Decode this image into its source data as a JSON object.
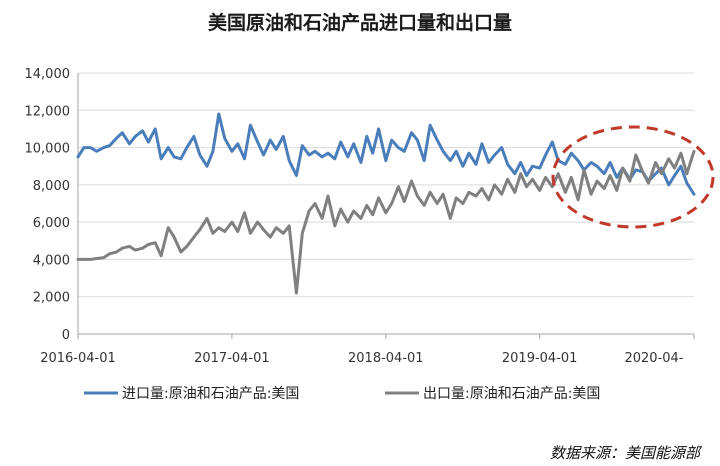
{
  "chart_data": {
    "type": "line",
    "title": "美国原油和石油产品进口量和出口量",
    "source": "数据来源：美国能源部",
    "ylim": [
      0,
      14000
    ],
    "yticks": [
      {
        "value": 0,
        "label": "0"
      },
      {
        "value": 2000,
        "label": "2,000"
      },
      {
        "value": 4000,
        "label": "4,000"
      },
      {
        "value": 6000,
        "label": "6,000"
      },
      {
        "value": 8000,
        "label": "8,000"
      },
      {
        "value": 10000,
        "label": "10,000"
      },
      {
        "value": 12000,
        "label": "12,000"
      },
      {
        "value": 14000,
        "label": "14,000"
      }
    ],
    "xlim": [
      "2016-04-01",
      "2020-04-01"
    ],
    "xticks": [
      {
        "value": "2016-04-01",
        "label": "2016-04-01"
      },
      {
        "value": "2017-04-01",
        "label": "2017-04-01"
      },
      {
        "value": "2018-04-01",
        "label": "2018-04-01"
      },
      {
        "value": "2019-04-01",
        "label": "2019-04-01"
      },
      {
        "value": "2020-04-01",
        "label": "2020-04-"
      }
    ],
    "grid": "horizontal",
    "legend": "bottom",
    "annotation": "red dashed ellipse highlighting 2019-05 to 2020-04, where exports approach imports",
    "series": [
      {
        "name": "进口量:原油和石油产品:美国",
        "color": "#4a7ebb",
        "points": [
          [
            "2016-04-01",
            9500
          ],
          [
            "2016-04-15",
            10000
          ],
          [
            "2016-05-01",
            10000
          ],
          [
            "2016-05-15",
            9800
          ],
          [
            "2016-06-01",
            10000
          ],
          [
            "2016-06-15",
            10100
          ],
          [
            "2016-07-01",
            10500
          ],
          [
            "2016-07-15",
            10800
          ],
          [
            "2016-08-01",
            10200
          ],
          [
            "2016-08-15",
            10600
          ],
          [
            "2016-09-01",
            10900
          ],
          [
            "2016-09-15",
            10300
          ],
          [
            "2016-10-01",
            11000
          ],
          [
            "2016-10-15",
            9400
          ],
          [
            "2016-11-01",
            10000
          ],
          [
            "2016-11-15",
            9500
          ],
          [
            "2016-12-01",
            9400
          ],
          [
            "2016-12-15",
            10000
          ],
          [
            "2017-01-01",
            10600
          ],
          [
            "2017-01-15",
            9600
          ],
          [
            "2017-02-01",
            9000
          ],
          [
            "2017-02-15",
            9800
          ],
          [
            "2017-03-01",
            11800
          ],
          [
            "2017-03-15",
            10500
          ],
          [
            "2017-04-01",
            9800
          ],
          [
            "2017-04-15",
            10200
          ],
          [
            "2017-05-01",
            9400
          ],
          [
            "2017-05-15",
            11200
          ],
          [
            "2017-06-01",
            10300
          ],
          [
            "2017-06-15",
            9600
          ],
          [
            "2017-07-01",
            10400
          ],
          [
            "2017-07-15",
            9900
          ],
          [
            "2017-08-01",
            10600
          ],
          [
            "2017-08-15",
            9300
          ],
          [
            "2017-09-01",
            8500
          ],
          [
            "2017-09-15",
            10100
          ],
          [
            "2017-10-01",
            9600
          ],
          [
            "2017-10-15",
            9800
          ],
          [
            "2017-11-01",
            9500
          ],
          [
            "2017-11-15",
            9700
          ],
          [
            "2017-12-01",
            9400
          ],
          [
            "2017-12-15",
            10300
          ],
          [
            "2018-01-01",
            9500
          ],
          [
            "2018-01-15",
            10200
          ],
          [
            "2018-02-01",
            9200
          ],
          [
            "2018-02-15",
            10600
          ],
          [
            "2018-03-01",
            9700
          ],
          [
            "2018-03-15",
            11000
          ],
          [
            "2018-04-01",
            9300
          ],
          [
            "2018-04-15",
            10400
          ],
          [
            "2018-05-01",
            10000
          ],
          [
            "2018-05-15",
            9800
          ],
          [
            "2018-06-01",
            10800
          ],
          [
            "2018-06-15",
            10400
          ],
          [
            "2018-07-01",
            9300
          ],
          [
            "2018-07-15",
            11200
          ],
          [
            "2018-08-01",
            10400
          ],
          [
            "2018-08-15",
            9800
          ],
          [
            "2018-09-01",
            9300
          ],
          [
            "2018-09-15",
            9800
          ],
          [
            "2018-10-01",
            9000
          ],
          [
            "2018-10-15",
            9700
          ],
          [
            "2018-11-01",
            9100
          ],
          [
            "2018-11-15",
            10200
          ],
          [
            "2018-12-01",
            9200
          ],
          [
            "2018-12-15",
            9600
          ],
          [
            "2019-01-01",
            10000
          ],
          [
            "2019-01-15",
            9100
          ],
          [
            "2019-02-01",
            8600
          ],
          [
            "2019-02-15",
            9200
          ],
          [
            "2019-03-01",
            8500
          ],
          [
            "2019-03-15",
            9000
          ],
          [
            "2019-04-01",
            8900
          ],
          [
            "2019-04-15",
            9600
          ],
          [
            "2019-05-01",
            10300
          ],
          [
            "2019-05-15",
            9300
          ],
          [
            "2019-06-01",
            9100
          ],
          [
            "2019-06-15",
            9700
          ],
          [
            "2019-07-01",
            9300
          ],
          [
            "2019-07-15",
            8800
          ],
          [
            "2019-08-01",
            9200
          ],
          [
            "2019-08-15",
            9000
          ],
          [
            "2019-09-01",
            8600
          ],
          [
            "2019-09-15",
            9200
          ],
          [
            "2019-10-01",
            8400
          ],
          [
            "2019-10-15",
            8900
          ],
          [
            "2019-11-01",
            8300
          ],
          [
            "2019-11-15",
            8800
          ],
          [
            "2019-12-01",
            8700
          ],
          [
            "2019-12-15",
            8200
          ],
          [
            "2020-01-01",
            8600
          ],
          [
            "2020-01-15",
            8900
          ],
          [
            "2020-02-01",
            8000
          ],
          [
            "2020-02-15",
            8500
          ],
          [
            "2020-03-01",
            9000
          ],
          [
            "2020-03-15",
            8100
          ],
          [
            "2020-04-01",
            7500
          ]
        ]
      },
      {
        "name": "出口量:原油和石油产品:美国",
        "color": "#808080",
        "points": [
          [
            "2016-04-01",
            4000
          ],
          [
            "2016-05-01",
            4000
          ],
          [
            "2016-06-01",
            4100
          ],
          [
            "2016-06-15",
            4300
          ],
          [
            "2016-07-01",
            4400
          ],
          [
            "2016-07-15",
            4600
          ],
          [
            "2016-08-01",
            4700
          ],
          [
            "2016-08-15",
            4500
          ],
          [
            "2016-09-01",
            4600
          ],
          [
            "2016-09-15",
            4800
          ],
          [
            "2016-10-01",
            4900
          ],
          [
            "2016-10-15",
            4200
          ],
          [
            "2016-11-01",
            5700
          ],
          [
            "2016-11-15",
            5200
          ],
          [
            "2016-12-01",
            4400
          ],
          [
            "2016-12-15",
            4700
          ],
          [
            "2017-01-01",
            5200
          ],
          [
            "2017-01-15",
            5600
          ],
          [
            "2017-02-01",
            6200
          ],
          [
            "2017-02-15",
            5400
          ],
          [
            "2017-03-01",
            5700
          ],
          [
            "2017-03-15",
            5500
          ],
          [
            "2017-04-01",
            6000
          ],
          [
            "2017-04-15",
            5500
          ],
          [
            "2017-05-01",
            6500
          ],
          [
            "2017-05-15",
            5400
          ],
          [
            "2017-06-01",
            6000
          ],
          [
            "2017-06-15",
            5600
          ],
          [
            "2017-07-01",
            5200
          ],
          [
            "2017-07-15",
            5700
          ],
          [
            "2017-08-01",
            5400
          ],
          [
            "2017-08-15",
            5800
          ],
          [
            "2017-09-01",
            2200
          ],
          [
            "2017-09-15",
            5400
          ],
          [
            "2017-10-01",
            6600
          ],
          [
            "2017-10-15",
            7000
          ],
          [
            "2017-11-01",
            6200
          ],
          [
            "2017-11-15",
            7400
          ],
          [
            "2017-12-01",
            5800
          ],
          [
            "2017-12-15",
            6700
          ],
          [
            "2018-01-01",
            6000
          ],
          [
            "2018-01-15",
            6600
          ],
          [
            "2018-02-01",
            6200
          ],
          [
            "2018-02-15",
            6900
          ],
          [
            "2018-03-01",
            6400
          ],
          [
            "2018-03-15",
            7300
          ],
          [
            "2018-04-01",
            6500
          ],
          [
            "2018-04-15",
            7000
          ],
          [
            "2018-05-01",
            7900
          ],
          [
            "2018-05-15",
            7100
          ],
          [
            "2018-06-01",
            8200
          ],
          [
            "2018-06-15",
            7400
          ],
          [
            "2018-07-01",
            6900
          ],
          [
            "2018-07-15",
            7600
          ],
          [
            "2018-08-01",
            7000
          ],
          [
            "2018-08-15",
            7500
          ],
          [
            "2018-09-01",
            6200
          ],
          [
            "2018-09-15",
            7300
          ],
          [
            "2018-10-01",
            7000
          ],
          [
            "2018-10-15",
            7600
          ],
          [
            "2018-11-01",
            7400
          ],
          [
            "2018-11-15",
            7800
          ],
          [
            "2018-12-01",
            7200
          ],
          [
            "2018-12-15",
            8000
          ],
          [
            "2019-01-01",
            7500
          ],
          [
            "2019-01-15",
            8300
          ],
          [
            "2019-02-01",
            7600
          ],
          [
            "2019-02-15",
            8600
          ],
          [
            "2019-03-01",
            7900
          ],
          [
            "2019-03-15",
            8300
          ],
          [
            "2019-04-01",
            7700
          ],
          [
            "2019-04-15",
            8400
          ],
          [
            "2019-05-01",
            7900
          ],
          [
            "2019-05-15",
            8600
          ],
          [
            "2019-06-01",
            7600
          ],
          [
            "2019-06-15",
            8400
          ],
          [
            "2019-07-01",
            7200
          ],
          [
            "2019-07-15",
            8800
          ],
          [
            "2019-08-01",
            7500
          ],
          [
            "2019-08-15",
            8200
          ],
          [
            "2019-09-01",
            7800
          ],
          [
            "2019-09-15",
            8500
          ],
          [
            "2019-10-01",
            7700
          ],
          [
            "2019-10-15",
            8900
          ],
          [
            "2019-11-01",
            8200
          ],
          [
            "2019-11-15",
            9600
          ],
          [
            "2019-12-01",
            8700
          ],
          [
            "2019-12-15",
            8100
          ],
          [
            "2020-01-01",
            9200
          ],
          [
            "2020-01-15",
            8600
          ],
          [
            "2020-02-01",
            9400
          ],
          [
            "2020-02-15",
            8900
          ],
          [
            "2020-03-01",
            9700
          ],
          [
            "2020-03-15",
            8600
          ],
          [
            "2020-04-01",
            9800
          ]
        ]
      }
    ]
  }
}
